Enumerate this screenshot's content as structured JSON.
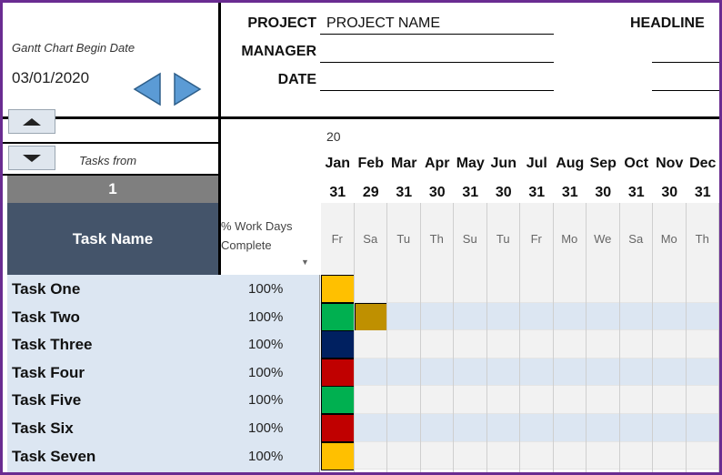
{
  "colors": {
    "frame": "#6a2c91",
    "task_header_bg": "#44546a",
    "task_index_bg": "#7f7f7f",
    "task_panel_bg": "#dce6f2",
    "arrow_fill": "#5b9bd5"
  },
  "gantt_settings": {
    "begin_label": "Gantt Chart Begin Date",
    "begin_date": "03/01/2020",
    "prev_icon": "triangle-left-icon",
    "next_icon": "triangle-right-icon"
  },
  "header": {
    "project_label": "PROJECT",
    "project_value": "PROJECT NAME",
    "manager_label": "MANAGER",
    "manager_value": "",
    "date_label": "DATE",
    "date_value": "",
    "headline_label": "HEADLINE"
  },
  "scroll": {
    "up_icon": "triangle-up-icon",
    "down_icon": "triangle-down-icon",
    "tasks_from_label": "Tasks from",
    "tasks_from_value": "1"
  },
  "table": {
    "task_name_header": "Task Name",
    "work_header": "% Work Days Complete",
    "filter_icon": "dropdown-filter-icon"
  },
  "timeline": {
    "year": "20",
    "months": [
      {
        "month": "Jan",
        "day": "31",
        "weekday": "Fr"
      },
      {
        "month": "Feb",
        "day": "29",
        "weekday": "Sa"
      },
      {
        "month": "Mar",
        "day": "31",
        "weekday": "Tu"
      },
      {
        "month": "Apr",
        "day": "30",
        "weekday": "Th"
      },
      {
        "month": "May",
        "day": "31",
        "weekday": "Su"
      },
      {
        "month": "Jun",
        "day": "30",
        "weekday": "Tu"
      },
      {
        "month": "Jul",
        "day": "31",
        "weekday": "Fr"
      },
      {
        "month": "Aug",
        "day": "31",
        "weekday": "Mo"
      },
      {
        "month": "Sep",
        "day": "30",
        "weekday": "We"
      },
      {
        "month": "Oct",
        "day": "31",
        "weekday": "Sa"
      },
      {
        "month": "Nov",
        "day": "30",
        "weekday": "Mo"
      },
      {
        "month": "Dec",
        "day": "31",
        "weekday": "Th"
      }
    ]
  },
  "tasks": [
    {
      "name": "Task One",
      "percent": "100%",
      "bar_color": "#ffc000",
      "span_months": 1
    },
    {
      "name": "Task Two",
      "percent": "100%",
      "bar_color": "#00b050",
      "span_months": 1,
      "extra_color": "#bf9000"
    },
    {
      "name": "Task Three",
      "percent": "100%",
      "bar_color": "#002060",
      "span_months": 1
    },
    {
      "name": "Task Four",
      "percent": "100%",
      "bar_color": "#c00000",
      "span_months": 1
    },
    {
      "name": "Task Five",
      "percent": "100%",
      "bar_color": "#00b050",
      "span_months": 1
    },
    {
      "name": "Task Six",
      "percent": "100%",
      "bar_color": "#c00000",
      "span_months": 1
    },
    {
      "name": "Task Seven",
      "percent": "100%",
      "bar_color": "#ffc000",
      "span_months": 1
    }
  ]
}
